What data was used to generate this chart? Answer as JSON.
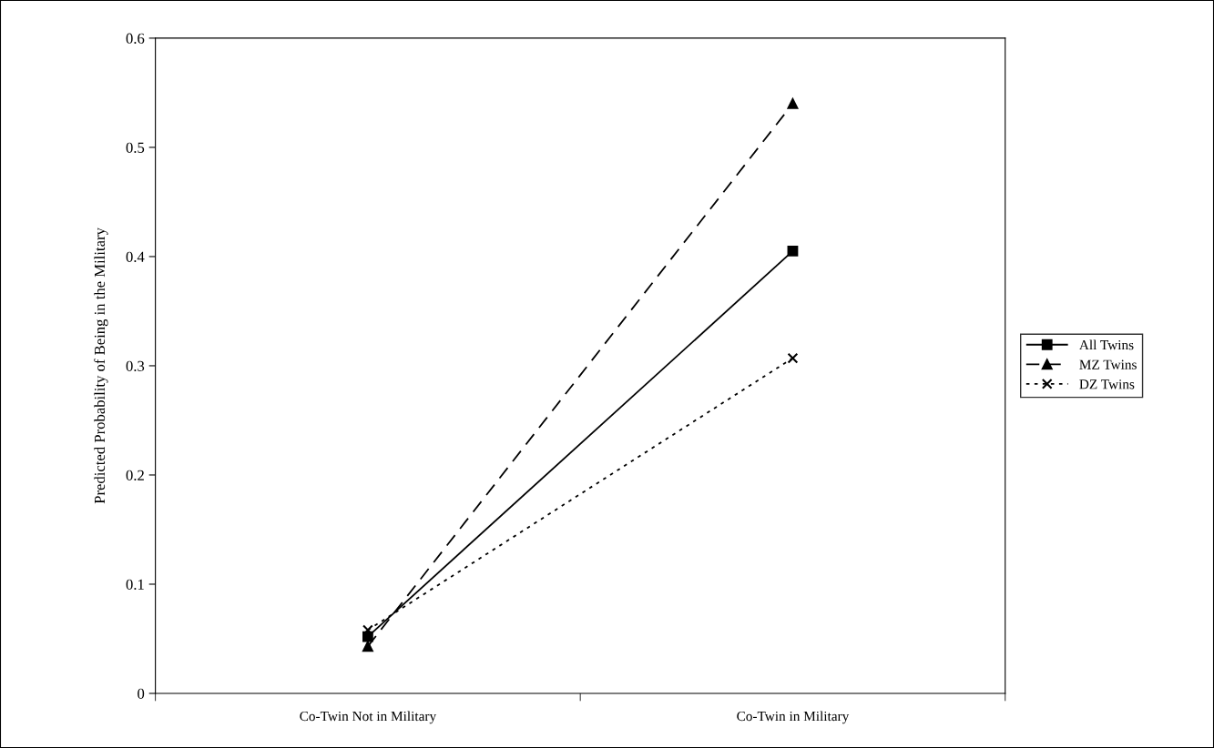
{
  "chart_data": {
    "type": "line",
    "ylabel": "Predicted Probability of Being in the Military",
    "categories": [
      "Co-Twin Not in Military",
      "Co-Twin in Military"
    ],
    "series": [
      {
        "name": "All Twins",
        "color": "#000000",
        "values": [
          0.052,
          0.405
        ],
        "marker": "square",
        "line_style": "solid"
      },
      {
        "name": "MZ Twins",
        "color": "#000000",
        "values": [
          0.043,
          0.54
        ],
        "marker": "triangle",
        "line_style": "dashed"
      },
      {
        "name": "DZ Twins",
        "color": "#000000",
        "values": [
          0.058,
          0.307
        ],
        "marker": "cross",
        "line_style": "dotted"
      }
    ],
    "ylim": [
      0,
      0.6
    ],
    "yticks": [
      0,
      0.1,
      0.2,
      0.3,
      0.4,
      0.5,
      0.6
    ],
    "legend": "right",
    "grid": false
  }
}
